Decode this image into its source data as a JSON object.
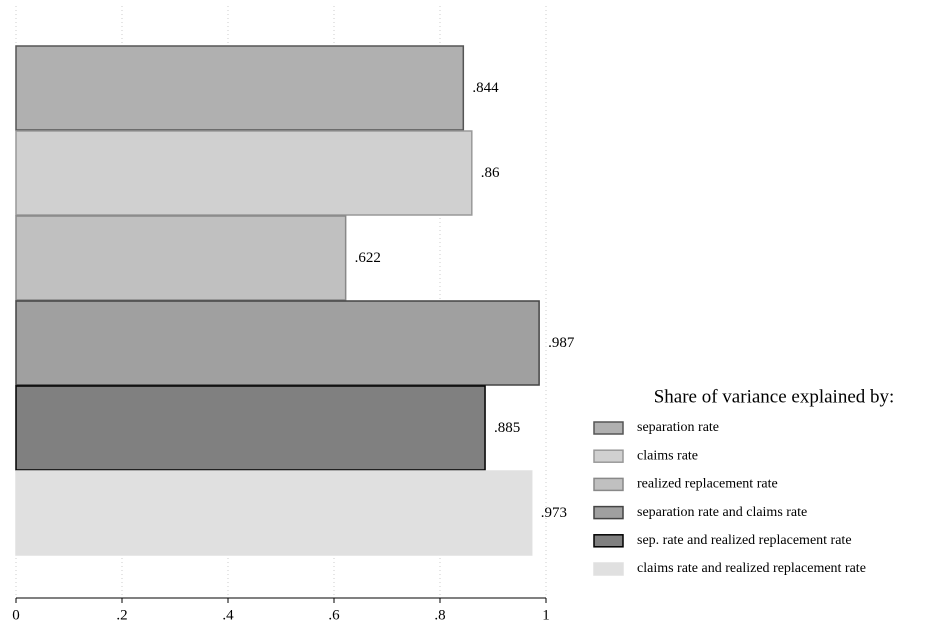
{
  "chart_data": {
    "type": "barh",
    "legend_title": "Share of variance explained by:",
    "legend": "right",
    "grid": true,
    "xlim": [
      0,
      1
    ],
    "xticks": [
      0,
      {
        "value": 0.2,
        "label": ".2"
      },
      {
        "value": 0.4,
        "label": ".4"
      },
      {
        "value": 0.6,
        "label": ".6"
      },
      {
        "value": 0.8,
        "label": ".8"
      },
      1
    ],
    "series": [
      {
        "name": "separation rate",
        "color": "#b0b0b0",
        "stroke": "#555555",
        "values": [
          0.844
        ],
        "value_labels": [
          ".844"
        ]
      },
      {
        "name": "claims rate",
        "color": "#d0d0d0",
        "stroke": "#999999",
        "values": [
          0.86
        ],
        "value_labels": [
          ".86"
        ]
      },
      {
        "name": "realized replacement rate",
        "color": "#c0c0c0",
        "stroke": "#888888",
        "values": [
          0.622
        ],
        "value_labels": [
          ".622"
        ]
      },
      {
        "name": "separation rate and claims rate",
        "color": "#a0a0a0",
        "stroke": "#444444",
        "values": [
          0.987
        ],
        "value_labels": [
          ".987"
        ]
      },
      {
        "name": "sep. rate and realized replacement rate",
        "color": "#808080",
        "stroke": "#000000",
        "values": [
          0.885
        ],
        "value_labels": [
          ".885"
        ]
      },
      {
        "name": "claims rate and realized replacement rate",
        "color": "#e0e0e0",
        "stroke": "#e0e0e0",
        "values": [
          0.973
        ],
        "value_labels": [
          ".973"
        ]
      }
    ]
  }
}
